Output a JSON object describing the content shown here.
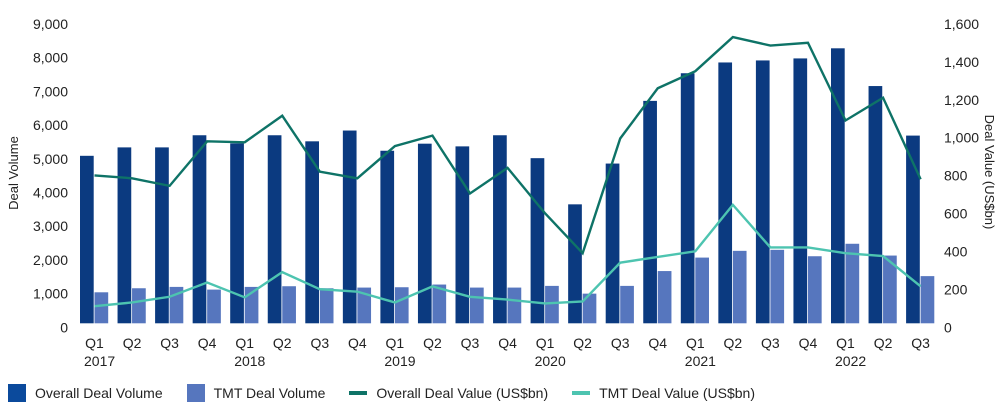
{
  "chart_data": {
    "type": "bar",
    "title": "",
    "categories": [
      "Q1",
      "Q2",
      "Q3",
      "Q4",
      "Q1",
      "Q2",
      "Q3",
      "Q4",
      "Q1",
      "Q2",
      "Q3",
      "Q4",
      "Q1",
      "Q2",
      "Q3",
      "Q4",
      "Q1",
      "Q2",
      "Q3",
      "Q4",
      "Q1",
      "Q2",
      "Q3"
    ],
    "year_labels": [
      {
        "label": "2017",
        "index": 0
      },
      {
        "label": "2018",
        "index": 4
      },
      {
        "label": "2019",
        "index": 8
      },
      {
        "label": "2020",
        "index": 12
      },
      {
        "label": "2021",
        "index": 16
      },
      {
        "label": "2022",
        "index": 20
      }
    ],
    "ylabel_left": "Deal Volume",
    "ylabel_right": "Deal Value (US$bn)",
    "ylim_left": [
      0,
      9000
    ],
    "yticks_left": [
      0,
      1000,
      2000,
      3000,
      4000,
      5000,
      6000,
      7000,
      8000,
      9000
    ],
    "ytick_labels_left": [
      "0",
      "1,000",
      "2,000",
      "3,000",
      "4,000",
      "5,000",
      "6,000",
      "7,000",
      "8,000",
      "9,000"
    ],
    "ylim_right": [
      0,
      1600
    ],
    "yticks_right": [
      0,
      200,
      400,
      600,
      800,
      1000,
      1200,
      1400,
      1600
    ],
    "ytick_labels_right": [
      "0",
      "200",
      "400",
      "600",
      "800",
      "1,000",
      "1,200",
      "1,400",
      "1,600"
    ],
    "grid": false,
    "legend_position": "bottom-left",
    "series": [
      {
        "name": "Overall Deal Volume",
        "kind": "bar",
        "axis": "left",
        "color": "#0B3A80",
        "values": [
          4970,
          5220,
          5220,
          5580,
          5340,
          5580,
          5400,
          5720,
          5120,
          5330,
          5250,
          5580,
          4900,
          3530,
          4740,
          6600,
          7420,
          7740,
          7800,
          7860,
          8160,
          7040,
          5570
        ]
      },
      {
        "name": "TMT Deal Volume",
        "kind": "bar",
        "axis": "left",
        "color": "#5676BE",
        "values": [
          920,
          1040,
          1080,
          1000,
          1080,
          1100,
          1040,
          1060,
          1070,
          1150,
          1060,
          1060,
          1110,
          880,
          1110,
          1550,
          1950,
          2150,
          2180,
          1990,
          2360,
          2010,
          1400
        ]
      },
      {
        "name": "Overall Deal Value (US$bn)",
        "kind": "line",
        "axis": "right",
        "color": "#0E7367",
        "values": [
          780,
          765,
          725,
          960,
          955,
          1095,
          800,
          765,
          935,
          990,
          685,
          820,
          580,
          370,
          975,
          1240,
          1330,
          1510,
          1465,
          1480,
          1070,
          1190,
          760
        ]
      },
      {
        "name": "TMT Deal Value (US$bn)",
        "kind": "line",
        "axis": "right",
        "color": "#4DC4B0",
        "values": [
          90,
          110,
          140,
          215,
          137,
          270,
          180,
          167,
          110,
          195,
          140,
          125,
          105,
          115,
          320,
          350,
          380,
          625,
          400,
          400,
          370,
          355,
          195
        ]
      }
    ]
  },
  "legend": [
    {
      "label": "Overall Deal Volume",
      "type": "box",
      "color": "#0B4A9C"
    },
    {
      "label": "TMT Deal Volume",
      "type": "box",
      "color": "#5676BE"
    },
    {
      "label": "Overall Deal Value (US$bn)",
      "type": "line",
      "color": "#0E7367"
    },
    {
      "label": "TMT Deal Value (US$bn)",
      "type": "line",
      "color": "#4DC4B0"
    }
  ]
}
